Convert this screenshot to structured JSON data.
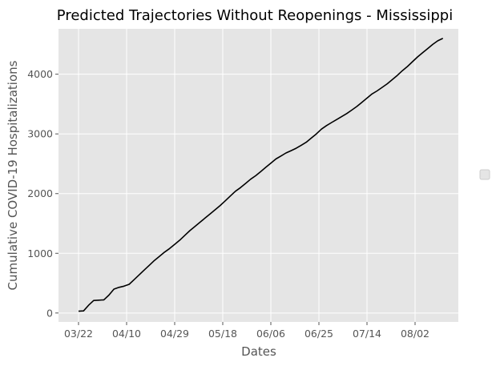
{
  "chart_data": {
    "type": "line",
    "title": "Predicted Trajectories Without Reopenings - Mississippi",
    "xlabel": "Dates",
    "ylabel": "Cumulative COVID-19 Hospitalizations",
    "x_tick_labels": [
      "03/22",
      "04/10",
      "04/29",
      "05/18",
      "06/06",
      "06/25",
      "07/14",
      "08/02"
    ],
    "y_ticks": [
      0,
      1000,
      2000,
      3000,
      4000
    ],
    "ylim": [
      -150,
      4760
    ],
    "grid": true,
    "legend": {
      "position": "center-right",
      "entries": []
    },
    "colors": {
      "background": "#e5e5e5",
      "grid": "#ffffff",
      "line": "#000000"
    },
    "series": [
      {
        "x": [
          "03/22",
          "03/24",
          "03/26",
          "03/28",
          "03/30",
          "04/01",
          "04/03",
          "04/05",
          "04/07",
          "04/09",
          "04/11",
          "04/13",
          "04/15",
          "04/17",
          "04/19",
          "04/21",
          "04/23",
          "04/25",
          "04/27",
          "04/29",
          "05/01",
          "05/03",
          "05/05",
          "05/07",
          "05/09",
          "05/11",
          "05/13",
          "05/15",
          "05/17",
          "05/19",
          "05/21",
          "05/23",
          "05/25",
          "05/27",
          "05/29",
          "05/31",
          "06/02",
          "06/04",
          "06/06",
          "06/08",
          "06/10",
          "06/12",
          "06/14",
          "06/16",
          "06/18",
          "06/20",
          "06/22",
          "06/24",
          "06/26",
          "06/28",
          "06/30",
          "07/02",
          "07/04",
          "07/06",
          "07/08",
          "07/10",
          "07/12",
          "07/14",
          "07/16",
          "07/18",
          "07/20",
          "07/22",
          "07/24",
          "07/26",
          "07/28",
          "07/30",
          "08/01",
          "08/03",
          "08/05",
          "08/07",
          "08/09",
          "08/11",
          "08/13"
        ],
        "values": [
          30,
          35,
          130,
          210,
          215,
          220,
          300,
          400,
          430,
          450,
          480,
          560,
          640,
          720,
          800,
          880,
          950,
          1020,
          1080,
          1150,
          1220,
          1300,
          1380,
          1450,
          1520,
          1590,
          1660,
          1730,
          1800,
          1880,
          1960,
          2040,
          2100,
          2170,
          2240,
          2300,
          2370,
          2440,
          2510,
          2580,
          2630,
          2680,
          2720,
          2760,
          2810,
          2860,
          2930,
          3000,
          3080,
          3140,
          3190,
          3240,
          3290,
          3340,
          3400,
          3460,
          3530,
          3600,
          3670,
          3720,
          3780,
          3840,
          3910,
          3980,
          4060,
          4130,
          4210,
          4290,
          4360,
          4430,
          4500,
          4560,
          4600
        ]
      }
    ]
  }
}
